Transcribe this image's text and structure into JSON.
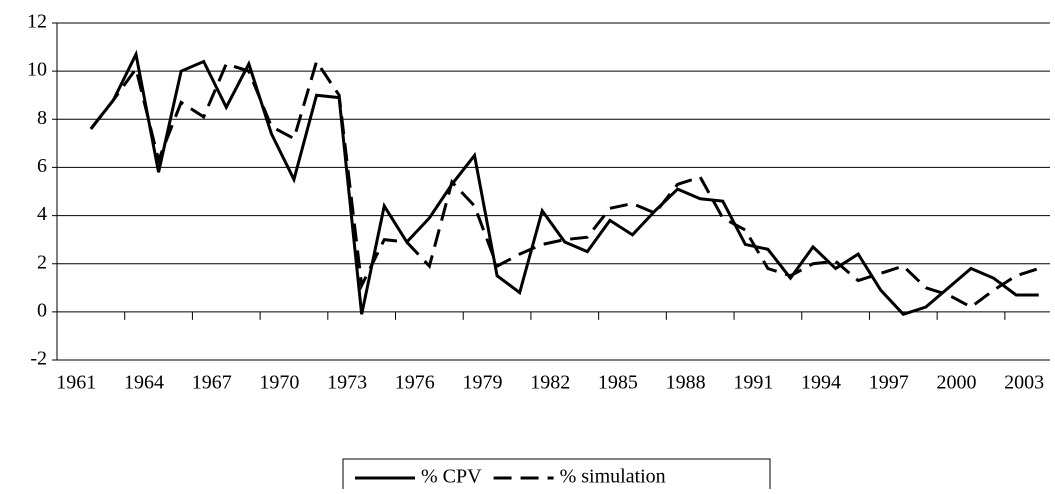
{
  "chart_data": {
    "type": "line",
    "categories": [
      "1961",
      null,
      null,
      "1964",
      null,
      null,
      "1967",
      null,
      null,
      "1970",
      null,
      null,
      "1973",
      null,
      null,
      "1976",
      null,
      null,
      "1979",
      null,
      null,
      "1982",
      null,
      null,
      "1985",
      null,
      null,
      "1988",
      null,
      null,
      "1991",
      null,
      null,
      "1994",
      null,
      null,
      "1997",
      null,
      null,
      "2000",
      null,
      null,
      "2003",
      null
    ],
    "series": [
      {
        "name": "% CPV",
        "color": "#000000",
        "dash": "solid",
        "values": [
          null,
          7.6,
          8.8,
          10.7,
          5.8,
          10.0,
          10.4,
          8.5,
          10.3,
          7.4,
          5.5,
          9.0,
          8.9,
          -0.1,
          4.4,
          2.9,
          3.9,
          5.3,
          6.5,
          1.5,
          0.8,
          4.2,
          2.9,
          2.5,
          3.8,
          3.2,
          4.2,
          5.1,
          4.7,
          4.6,
          2.8,
          2.6,
          1.4,
          2.7,
          1.8,
          2.4,
          0.9,
          -0.1,
          0.2,
          1.0,
          1.8,
          1.4,
          0.7,
          0.7
        ]
      },
      {
        "name": "% simulation",
        "color": "#000000",
        "dash": "dashed",
        "values": [
          null,
          7.6,
          8.8,
          10.1,
          6.3,
          8.7,
          8.1,
          10.3,
          10.0,
          7.7,
          7.2,
          10.4,
          9.0,
          1.1,
          3.0,
          2.9,
          1.9,
          5.4,
          4.4,
          1.9,
          2.4,
          2.8,
          3.0,
          3.1,
          4.3,
          4.5,
          4.1,
          5.3,
          5.6,
          3.9,
          3.4,
          1.8,
          1.5,
          2.0,
          2.1,
          1.3,
          1.6,
          1.9,
          1.0,
          0.7,
          0.2,
          0.9,
          1.5,
          1.8
        ]
      }
    ],
    "ylim": [
      -2,
      12
    ],
    "yticks": [
      -2,
      0,
      2,
      4,
      6,
      8,
      10,
      12
    ],
    "grid": true,
    "legend": "bottom"
  }
}
